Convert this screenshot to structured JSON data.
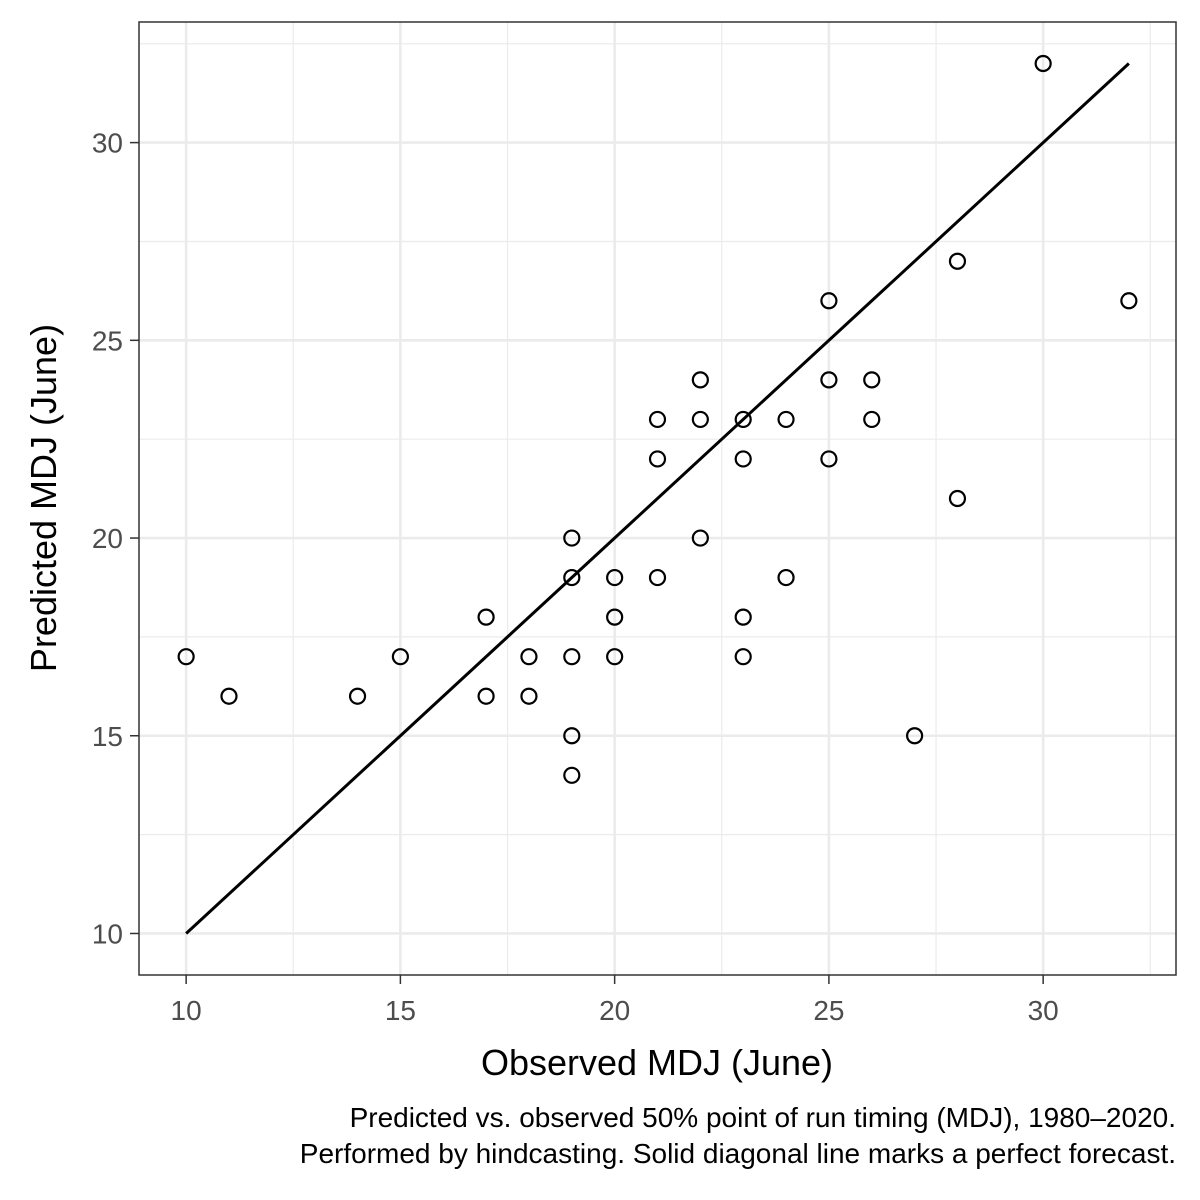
{
  "chart_data": {
    "type": "scatter",
    "xlabel": "Observed MDJ (June)",
    "ylabel": "Predicted MDJ (June)",
    "xlim": [
      8.9,
      33.1
    ],
    "ylim": [
      8.95,
      33.05
    ],
    "x_ticks": [
      10,
      15,
      20,
      25,
      30
    ],
    "y_ticks": [
      10,
      15,
      20,
      25,
      30
    ],
    "grid": true,
    "reference_line": {
      "from": [
        10,
        10
      ],
      "to": [
        32,
        32
      ]
    },
    "colors": {
      "points": "#000000",
      "line": "#000000",
      "grid": "#ebebeb",
      "panel_border": "#333333"
    },
    "points": [
      {
        "x": 10,
        "y": 17
      },
      {
        "x": 11,
        "y": 16
      },
      {
        "x": 14,
        "y": 16
      },
      {
        "x": 15,
        "y": 17
      },
      {
        "x": 17,
        "y": 18
      },
      {
        "x": 17,
        "y": 16
      },
      {
        "x": 18,
        "y": 17
      },
      {
        "x": 18,
        "y": 16
      },
      {
        "x": 19,
        "y": 20
      },
      {
        "x": 19,
        "y": 19
      },
      {
        "x": 19,
        "y": 17
      },
      {
        "x": 19,
        "y": 15
      },
      {
        "x": 19,
        "y": 14
      },
      {
        "x": 20,
        "y": 19
      },
      {
        "x": 20,
        "y": 18
      },
      {
        "x": 20,
        "y": 17
      },
      {
        "x": 21,
        "y": 23
      },
      {
        "x": 21,
        "y": 22
      },
      {
        "x": 21,
        "y": 19
      },
      {
        "x": 22,
        "y": 24
      },
      {
        "x": 22,
        "y": 23
      },
      {
        "x": 22,
        "y": 20
      },
      {
        "x": 23,
        "y": 23
      },
      {
        "x": 23,
        "y": 22
      },
      {
        "x": 23,
        "y": 18
      },
      {
        "x": 23,
        "y": 17
      },
      {
        "x": 24,
        "y": 23
      },
      {
        "x": 24,
        "y": 19
      },
      {
        "x": 25,
        "y": 26
      },
      {
        "x": 25,
        "y": 24
      },
      {
        "x": 25,
        "y": 22
      },
      {
        "x": 26,
        "y": 24
      },
      {
        "x": 26,
        "y": 23
      },
      {
        "x": 27,
        "y": 15
      },
      {
        "x": 28,
        "y": 27
      },
      {
        "x": 28,
        "y": 21
      },
      {
        "x": 30,
        "y": 32
      },
      {
        "x": 32,
        "y": 26
      }
    ]
  },
  "caption": {
    "line1": "Predicted vs. observed 50% point of run timing (MDJ), 1980–2020.",
    "line2": "Performed by hindcasting. Solid diagonal line marks a perfect forecast."
  }
}
